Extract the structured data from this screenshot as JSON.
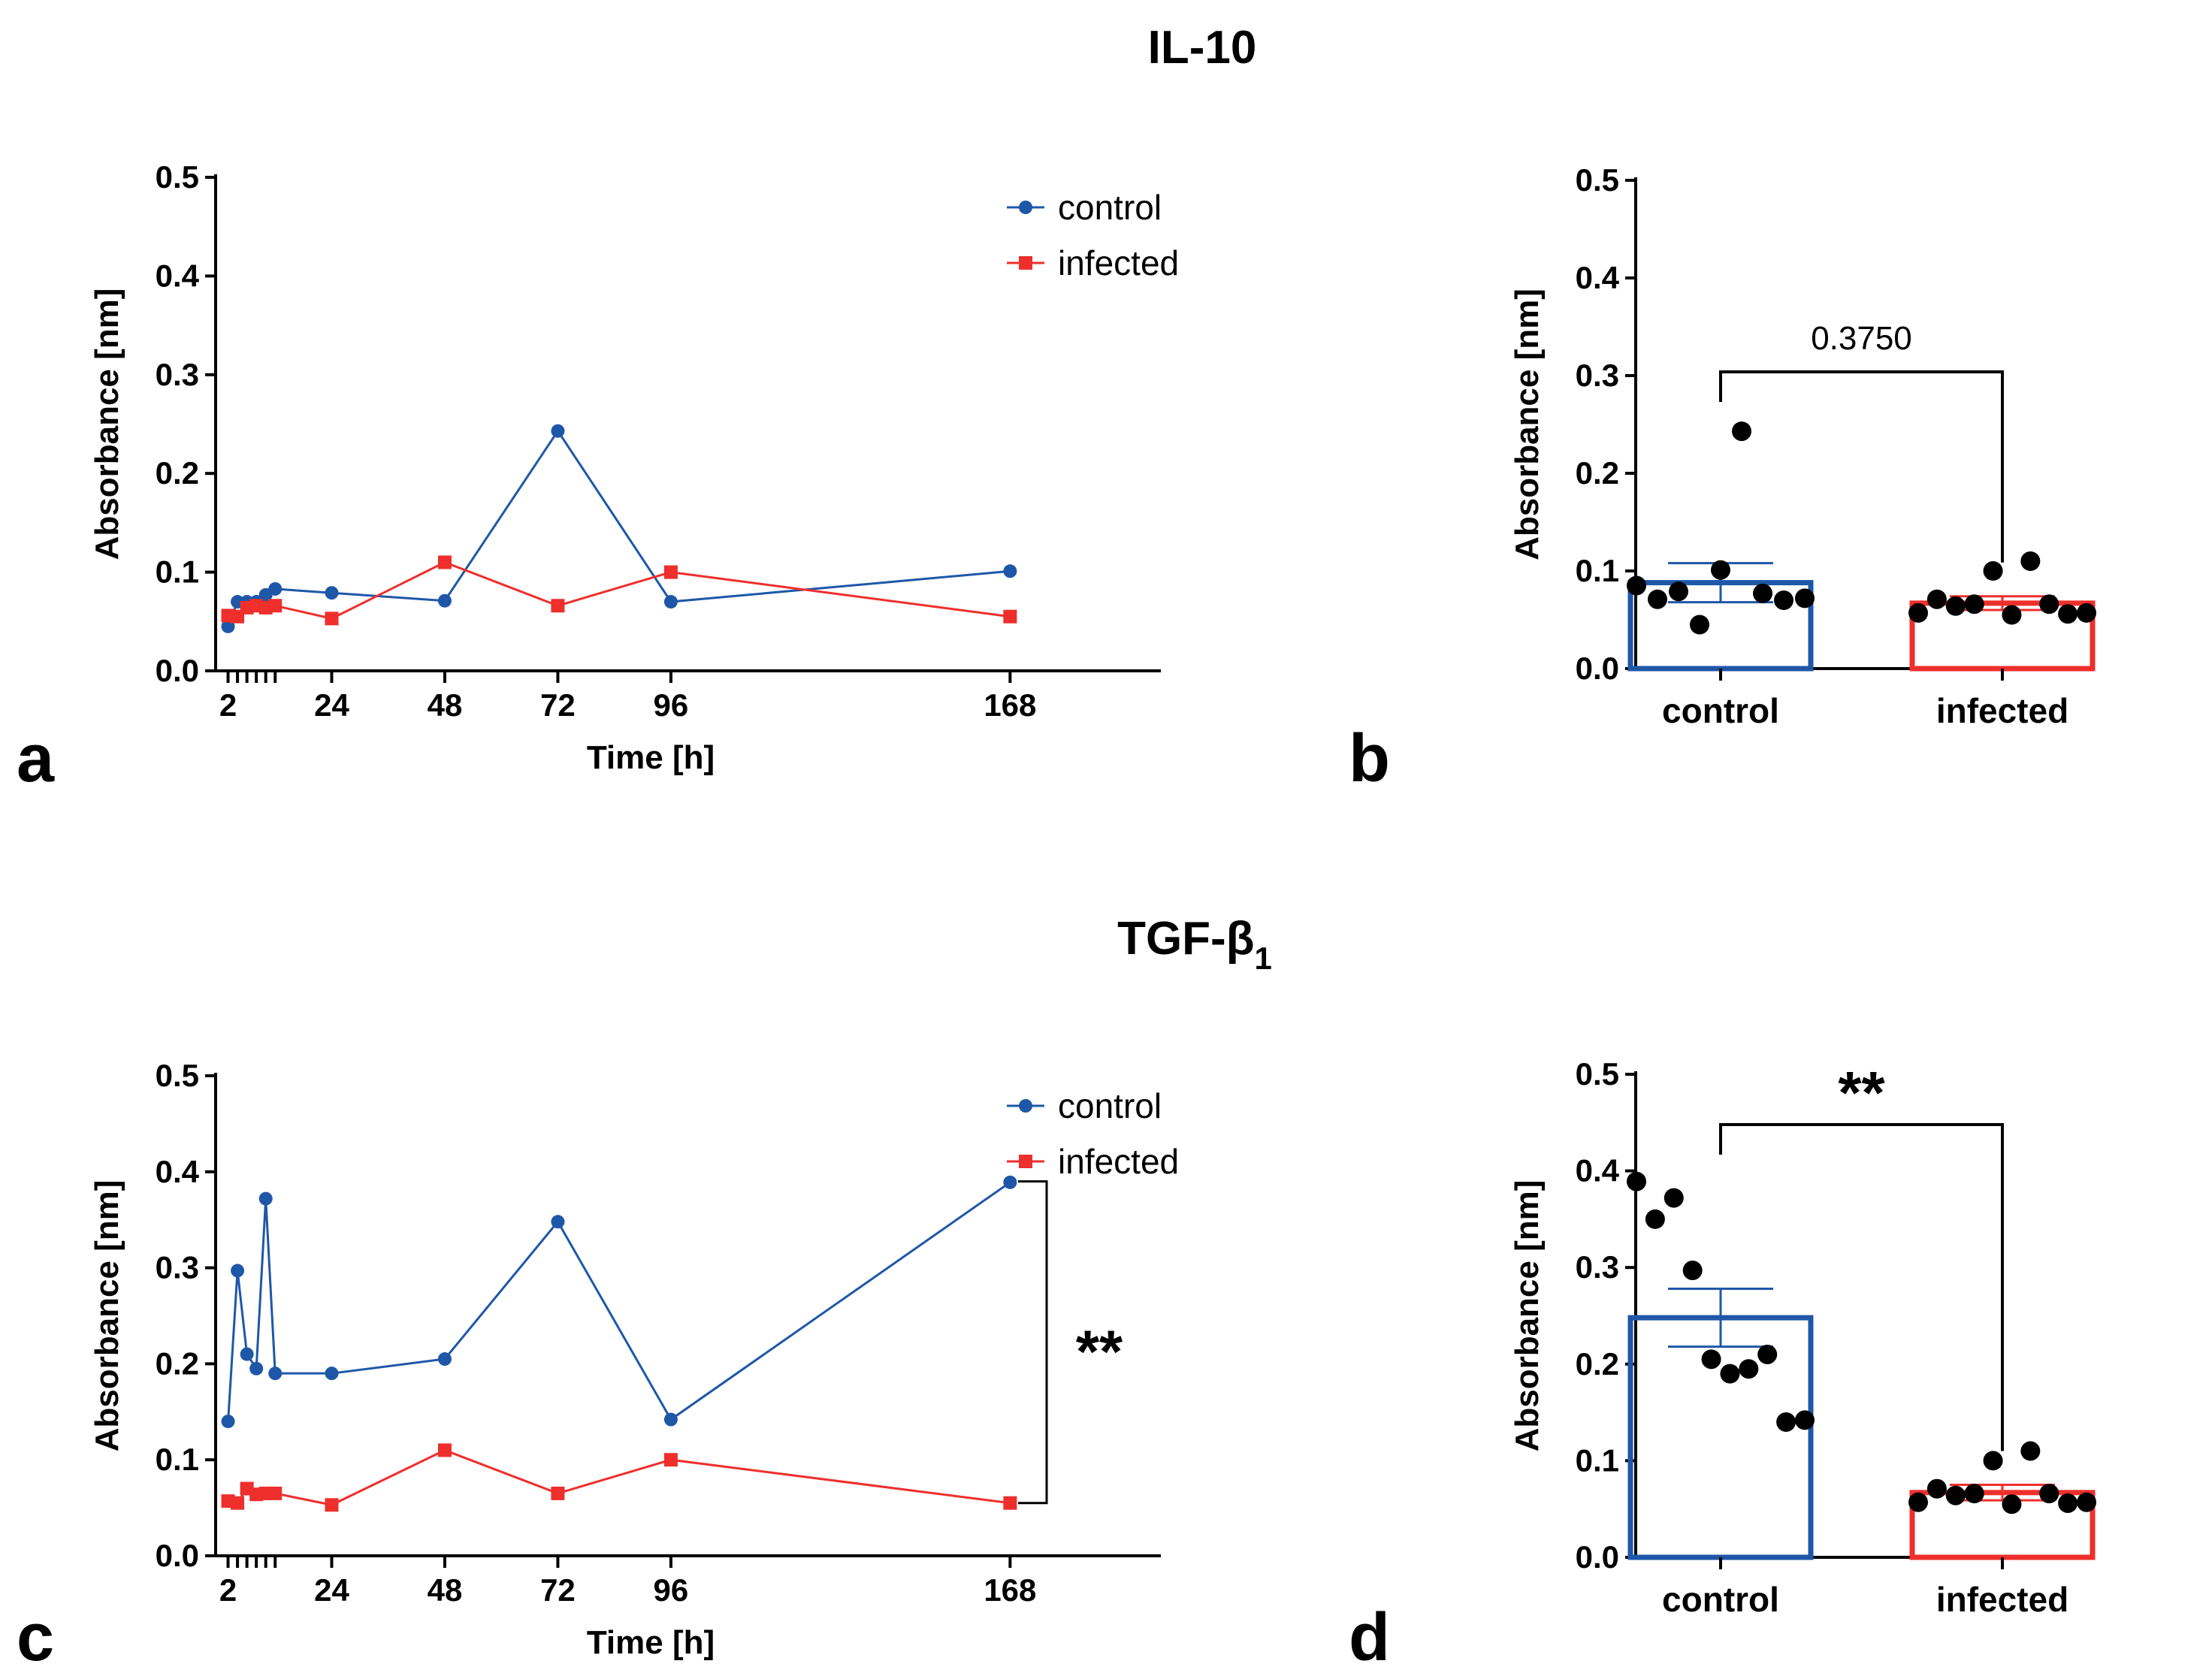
{
  "figure": {
    "section_titles": {
      "top": "IL-10",
      "bottom_main": "TGF-β",
      "bottom_sub": "1"
    },
    "panel_letters": [
      "a",
      "b",
      "c",
      "d"
    ]
  },
  "colors": {
    "control": "#1f57a8",
    "infected": "#ee2f2c",
    "dots": "#000000"
  },
  "chart_data": [
    {
      "id": "a",
      "type": "line",
      "title": "IL-10",
      "xlabel": "Time [h]",
      "ylabel": "Absorbance [nm]",
      "xlim": [
        0,
        200
      ],
      "ylim": [
        0,
        0.5
      ],
      "xticks": [
        2,
        4,
        6,
        8,
        10,
        12,
        24,
        48,
        72,
        96,
        168
      ],
      "xticklabels": [
        "2",
        "24",
        "48",
        "72",
        "96",
        "168"
      ],
      "yticks": [
        "0.0",
        "0.1",
        "0.2",
        "0.3",
        "0.4",
        "0.5"
      ],
      "legend": {
        "position": "top-right",
        "entries": [
          "control",
          "infected"
        ]
      },
      "series": [
        {
          "name": "control",
          "marker": "circle",
          "x": [
            2,
            4,
            6,
            8,
            10,
            12,
            24,
            48,
            72,
            96,
            168
          ],
          "y": [
            0.045,
            0.07,
            0.07,
            0.07,
            0.077,
            0.083,
            0.079,
            0.071,
            0.243,
            0.07,
            0.101
          ]
        },
        {
          "name": "infected",
          "marker": "square",
          "x": [
            2,
            4,
            6,
            8,
            10,
            12,
            24,
            48,
            72,
            96,
            168
          ],
          "y": [
            0.056,
            0.055,
            0.064,
            0.066,
            0.064,
            0.066,
            0.053,
            0.11,
            0.066,
            0.1,
            0.055
          ]
        }
      ]
    },
    {
      "id": "b",
      "type": "bar",
      "ylabel": "Absorbance [nm]",
      "ylim": [
        0,
        0.5
      ],
      "yticks": [
        "0.0",
        "0.1",
        "0.2",
        "0.3",
        "0.4",
        "0.5"
      ],
      "categories": [
        "control",
        "infected"
      ],
      "means": [
        0.088,
        0.067
      ],
      "sem": [
        0.02,
        0.007
      ],
      "points": [
        [
          0.085,
          0.071,
          0.079,
          0.045,
          0.101,
          0.243,
          0.077,
          0.07,
          0.072
        ],
        [
          0.057,
          0.071,
          0.064,
          0.066,
          0.1,
          0.055,
          0.11,
          0.066,
          0.056,
          0.057
        ]
      ],
      "annotation": "0.3750"
    },
    {
      "id": "c",
      "type": "line",
      "title": "TGF-β1",
      "xlabel": "Time [h]",
      "ylabel": "Absorbance [nm]",
      "xlim": [
        0,
        200
      ],
      "ylim": [
        0,
        0.5
      ],
      "xticks": [
        2,
        4,
        6,
        8,
        10,
        12,
        24,
        48,
        72,
        96,
        168
      ],
      "xticklabels": [
        "2",
        "24",
        "48",
        "72",
        "96",
        "168"
      ],
      "yticks": [
        "0.0",
        "0.1",
        "0.2",
        "0.3",
        "0.4",
        "0.5"
      ],
      "legend": {
        "position": "top-right",
        "entries": [
          "control",
          "infected"
        ]
      },
      "series": [
        {
          "name": "control",
          "marker": "circle",
          "x": [
            2,
            4,
            6,
            8,
            10,
            12,
            24,
            48,
            72,
            96,
            168
          ],
          "y": [
            0.14,
            0.297,
            0.21,
            0.195,
            0.372,
            0.19,
            0.19,
            0.205,
            0.348,
            0.142,
            0.389
          ]
        },
        {
          "name": "infected",
          "marker": "square",
          "x": [
            2,
            4,
            6,
            8,
            10,
            12,
            24,
            48,
            72,
            96,
            168
          ],
          "y": [
            0.057,
            0.055,
            0.07,
            0.064,
            0.065,
            0.065,
            0.053,
            0.11,
            0.065,
            0.1,
            0.055
          ]
        }
      ],
      "annotation": "**"
    },
    {
      "id": "d",
      "type": "bar",
      "ylabel": "Absorbance [nm]",
      "ylim": [
        0,
        0.5
      ],
      "yticks": [
        "0.0",
        "0.1",
        "0.2",
        "0.3",
        "0.4",
        "0.5"
      ],
      "categories": [
        "control",
        "infected"
      ],
      "means": [
        0.248,
        0.067
      ],
      "sem": [
        0.03,
        0.008
      ],
      "points": [
        [
          0.389,
          0.35,
          0.372,
          0.297,
          0.205,
          0.19,
          0.195,
          0.21,
          0.14,
          0.142
        ],
        [
          0.057,
          0.071,
          0.064,
          0.066,
          0.1,
          0.055,
          0.11,
          0.066,
          0.056,
          0.057
        ]
      ],
      "annotation": "**"
    }
  ]
}
